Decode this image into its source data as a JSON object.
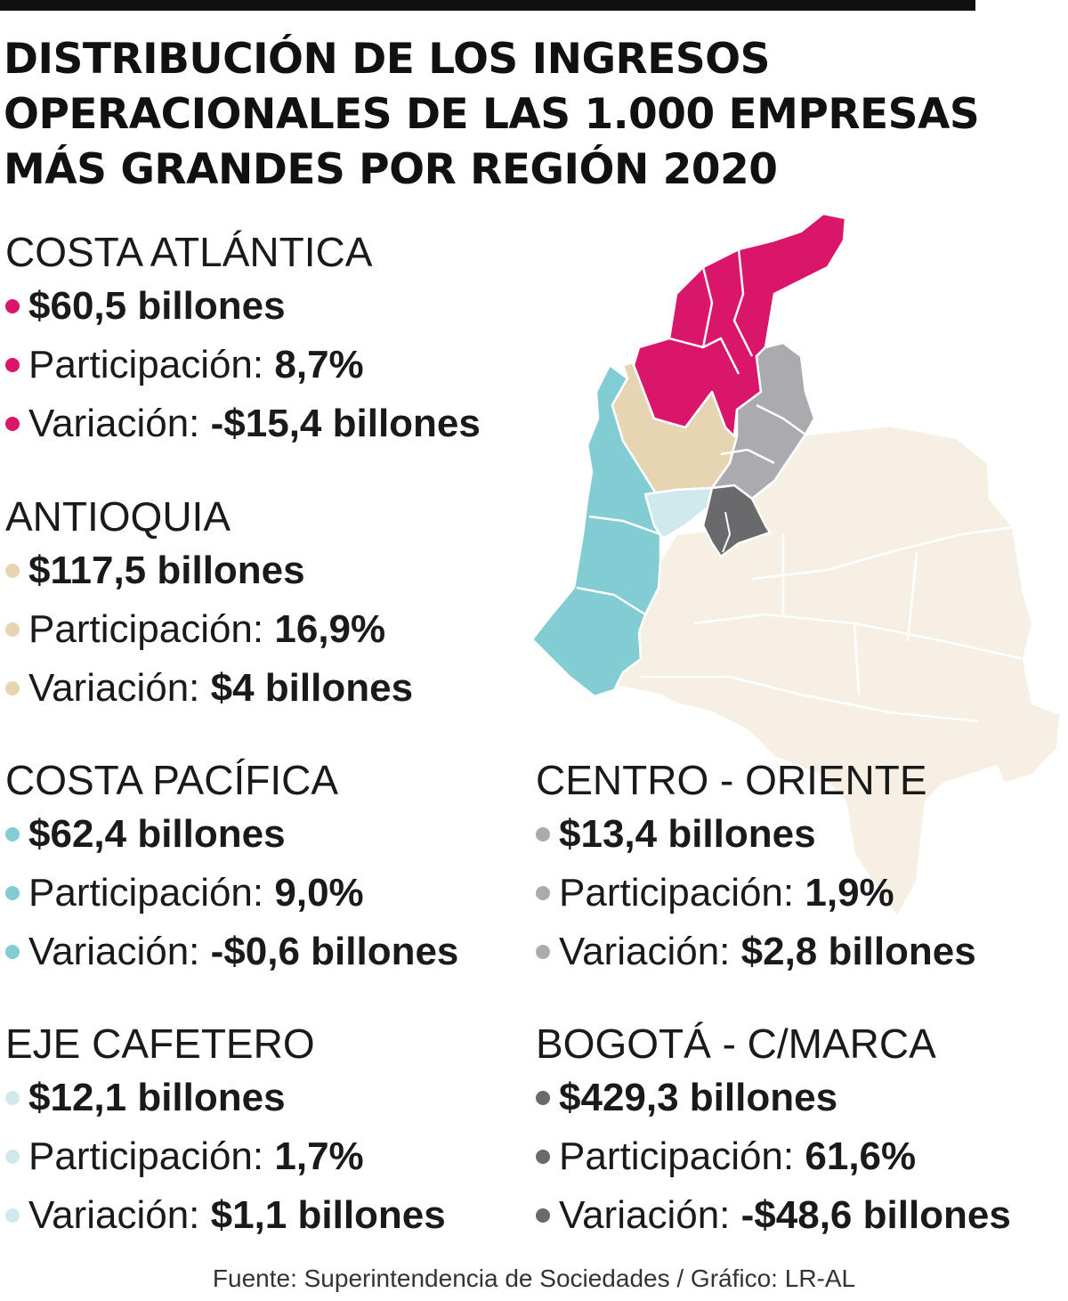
{
  "title": {
    "line1": "DISTRIBUCIÓN DE LOS INGRESOS",
    "line2": "OPERACIONALES DE LAS 1.000 EMPRESAS",
    "line3": "MÁS GRANDES POR REGIÓN 2020"
  },
  "regions": [
    {
      "name": "COSTA ATLÁNTICA",
      "color": "#d9166a",
      "amount": "$60,5 billones",
      "share_label": "Participación:",
      "share": "8,7%",
      "change_label": "Variación:",
      "change": "-$15,4 billones"
    },
    {
      "name": "ANTIOQUIA",
      "color": "#e6d4b3",
      "amount": "$117,5 billones",
      "share_label": "Participación:",
      "share": "16,9%",
      "change_label": "Variación:",
      "change": "$4 billones"
    },
    {
      "name": "COSTA PACÍFICA",
      "color": "#82cdd3",
      "amount": "$62,4 billones",
      "share_label": "Participación:",
      "share": "9,0%",
      "change_label": "Variación:",
      "change": "-$0,6 billones"
    },
    {
      "name": "CENTRO - ORIENTE",
      "color": "#abaaaf",
      "amount": "$13,4 billones",
      "share_label": "Participación:",
      "share": "1,9%",
      "change_label": "Variación:",
      "change": "$2,8 billones"
    },
    {
      "name": "EJE CAFETERO",
      "color": "#cfe9ec",
      "amount": "$12,1 billones",
      "share_label": "Participación:",
      "share": "1,7%",
      "change_label": "Variación:",
      "change": "$1,1 billones"
    },
    {
      "name": "BOGOTÁ - C/MARCA",
      "color": "#6a6a6c",
      "amount": "$429,3 billones",
      "share_label": "Participación:",
      "share": "61,6%",
      "change_label": "Variación:",
      "change": "-$48,6 billones"
    }
  ],
  "map_colors": {
    "rest_of_country": "#f5efe4",
    "borders": "#ffffff"
  },
  "source": "Fuente: Superintendencia de Sociedades / Gráfico: LR-AL"
}
